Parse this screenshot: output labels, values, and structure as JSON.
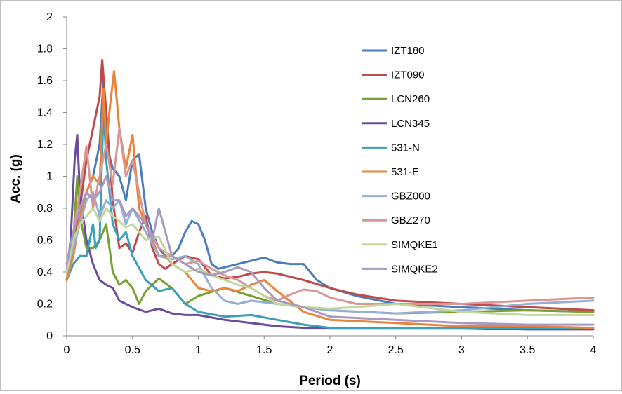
{
  "chart_data": {
    "type": "line",
    "xlabel": "Period (s)",
    "ylabel": "Acc. (g)",
    "xlim": [
      0,
      4
    ],
    "ylim": [
      0,
      2
    ],
    "xticks": [
      "0",
      "0.5",
      "1",
      "1.5",
      "2",
      "2.5",
      "3",
      "3.5",
      "4"
    ],
    "yticks": [
      "0",
      "0.2",
      "0.4",
      "0.6",
      "0.8",
      "1",
      "1.2",
      "1.4",
      "1.6",
      "1.8",
      "2"
    ],
    "grid": false,
    "legend_position": "top-right",
    "series": [
      {
        "name": "IZT180",
        "color": "#4a7ebb",
        "x": [
          0,
          0.05,
          0.1,
          0.15,
          0.2,
          0.25,
          0.28,
          0.3,
          0.35,
          0.4,
          0.45,
          0.5,
          0.55,
          0.6,
          0.65,
          0.7,
          0.75,
          0.8,
          0.85,
          0.9,
          0.95,
          1.0,
          1.05,
          1.1,
          1.15,
          1.2,
          1.3,
          1.4,
          1.5,
          1.6,
          1.7,
          1.8,
          1.9,
          2.0,
          2.2,
          2.5,
          3.0,
          3.5,
          4.0
        ],
        "y": [
          0.35,
          0.5,
          0.75,
          0.9,
          1.0,
          1.2,
          1.62,
          1.2,
          1.05,
          1.0,
          0.85,
          1.1,
          1.14,
          0.8,
          0.65,
          0.55,
          0.5,
          0.5,
          0.55,
          0.65,
          0.72,
          0.7,
          0.6,
          0.45,
          0.42,
          0.43,
          0.45,
          0.47,
          0.49,
          0.46,
          0.45,
          0.45,
          0.35,
          0.3,
          0.25,
          0.2,
          0.18,
          0.16,
          0.15
        ]
      },
      {
        "name": "IZT090",
        "color": "#be4b48",
        "x": [
          0,
          0.05,
          0.1,
          0.15,
          0.2,
          0.25,
          0.27,
          0.3,
          0.35,
          0.4,
          0.45,
          0.5,
          0.55,
          0.6,
          0.65,
          0.7,
          0.75,
          0.8,
          0.9,
          1.0,
          1.1,
          1.2,
          1.3,
          1.4,
          1.5,
          1.6,
          1.7,
          1.8,
          2.0,
          2.2,
          2.5,
          3.0,
          3.5,
          4.0
        ],
        "y": [
          0.35,
          0.55,
          0.8,
          1.1,
          1.3,
          1.5,
          1.73,
          1.4,
          0.85,
          0.55,
          0.58,
          0.52,
          0.65,
          0.75,
          0.55,
          0.45,
          0.42,
          0.45,
          0.5,
          0.48,
          0.38,
          0.36,
          0.37,
          0.39,
          0.4,
          0.39,
          0.37,
          0.35,
          0.3,
          0.26,
          0.22,
          0.2,
          0.18,
          0.16
        ]
      },
      {
        "name": "LCN260",
        "color": "#77a033",
        "x": [
          0,
          0.05,
          0.08,
          0.1,
          0.15,
          0.2,
          0.25,
          0.3,
          0.35,
          0.4,
          0.45,
          0.5,
          0.55,
          0.6,
          0.7,
          0.8,
          0.9,
          1.0,
          1.2,
          1.4,
          1.6,
          1.8,
          2.0,
          2.5,
          3.0,
          3.5,
          4.0
        ],
        "y": [
          0.35,
          0.6,
          1.0,
          0.75,
          0.55,
          0.55,
          0.6,
          0.7,
          0.4,
          0.32,
          0.35,
          0.3,
          0.2,
          0.28,
          0.36,
          0.3,
          0.2,
          0.25,
          0.3,
          0.25,
          0.2,
          0.18,
          0.16,
          0.14,
          0.15,
          0.16,
          0.15
        ]
      },
      {
        "name": "LCN345",
        "color": "#6b4c9a",
        "x": [
          0,
          0.03,
          0.06,
          0.08,
          0.1,
          0.15,
          0.2,
          0.25,
          0.3,
          0.35,
          0.4,
          0.5,
          0.6,
          0.7,
          0.8,
          0.9,
          1.0,
          1.2,
          1.4,
          1.6,
          1.8,
          2.0,
          2.5,
          3.0,
          3.5,
          4.0
        ],
        "y": [
          0.4,
          0.6,
          1.1,
          1.26,
          0.9,
          0.6,
          0.45,
          0.35,
          0.32,
          0.3,
          0.22,
          0.18,
          0.15,
          0.17,
          0.14,
          0.13,
          0.13,
          0.1,
          0.08,
          0.06,
          0.05,
          0.05,
          0.05,
          0.05,
          0.04,
          0.04
        ]
      },
      {
        "name": "531-N",
        "color": "#3a9fb8",
        "x": [
          0,
          0.05,
          0.1,
          0.15,
          0.2,
          0.22,
          0.25,
          0.28,
          0.3,
          0.35,
          0.4,
          0.45,
          0.5,
          0.6,
          0.7,
          0.8,
          0.9,
          1.0,
          1.2,
          1.4,
          1.6,
          1.8,
          2.0,
          2.5,
          3.0,
          3.5,
          4.0
        ],
        "y": [
          0.35,
          0.45,
          0.5,
          0.5,
          0.7,
          0.55,
          0.6,
          1.44,
          1.1,
          0.7,
          0.6,
          0.65,
          0.5,
          0.35,
          0.28,
          0.3,
          0.2,
          0.15,
          0.12,
          0.13,
          0.1,
          0.07,
          0.05,
          0.05,
          0.05,
          0.05,
          0.05
        ]
      },
      {
        "name": "531-E",
        "color": "#e8843b",
        "x": [
          0,
          0.05,
          0.1,
          0.15,
          0.2,
          0.25,
          0.28,
          0.3,
          0.33,
          0.36,
          0.4,
          0.45,
          0.5,
          0.55,
          0.6,
          0.65,
          0.7,
          0.75,
          0.8,
          0.9,
          1.0,
          1.1,
          1.2,
          1.3,
          1.4,
          1.5,
          1.6,
          1.8,
          2.0,
          2.5,
          3.0,
          3.5,
          4.0
        ],
        "y": [
          0.35,
          0.5,
          0.75,
          0.9,
          1.0,
          0.95,
          1.55,
          1.2,
          1.45,
          1.66,
          1.3,
          1.05,
          1.26,
          0.8,
          0.7,
          0.6,
          0.5,
          0.5,
          0.45,
          0.4,
          0.3,
          0.28,
          0.3,
          0.28,
          0.32,
          0.35,
          0.28,
          0.15,
          0.1,
          0.08,
          0.06,
          0.06,
          0.05
        ]
      },
      {
        "name": "GBZ000",
        "color": "#94aed6",
        "x": [
          0,
          0.05,
          0.1,
          0.15,
          0.2,
          0.25,
          0.3,
          0.35,
          0.4,
          0.45,
          0.5,
          0.6,
          0.7,
          0.8,
          0.9,
          1.0,
          1.1,
          1.2,
          1.3,
          1.4,
          1.6,
          1.8,
          2.0,
          2.5,
          3.0,
          3.5,
          4.0
        ],
        "y": [
          0.4,
          0.55,
          0.7,
          0.85,
          0.9,
          0.75,
          0.85,
          0.8,
          0.85,
          0.7,
          0.8,
          0.65,
          0.5,
          0.48,
          0.5,
          0.45,
          0.3,
          0.22,
          0.2,
          0.22,
          0.2,
          0.18,
          0.16,
          0.14,
          0.16,
          0.2,
          0.22
        ]
      },
      {
        "name": "GBZ270",
        "color": "#d99694",
        "x": [
          0,
          0.05,
          0.1,
          0.15,
          0.2,
          0.25,
          0.3,
          0.35,
          0.4,
          0.45,
          0.5,
          0.6,
          0.7,
          0.8,
          0.9,
          1.0,
          1.1,
          1.2,
          1.3,
          1.4,
          1.5,
          1.6,
          1.7,
          1.8,
          1.9,
          2.0,
          2.2,
          2.5,
          3.0,
          3.5,
          4.0
        ],
        "y": [
          0.45,
          0.65,
          0.9,
          1.19,
          0.8,
          1.0,
          1.2,
          0.95,
          1.3,
          1.0,
          1.1,
          0.7,
          0.55,
          0.5,
          0.45,
          0.47,
          0.42,
          0.38,
          0.35,
          0.3,
          0.25,
          0.22,
          0.26,
          0.29,
          0.28,
          0.24,
          0.2,
          0.2,
          0.2,
          0.22,
          0.24
        ]
      },
      {
        "name": "SIMQKE1",
        "color": "#c3d69b",
        "x": [
          0,
          0.05,
          0.1,
          0.15,
          0.2,
          0.25,
          0.3,
          0.35,
          0.4,
          0.45,
          0.5,
          0.55,
          0.6,
          0.7,
          0.8,
          0.9,
          1.0,
          1.1,
          1.2,
          1.3,
          1.4,
          1.5,
          1.6,
          1.8,
          2.0,
          2.2,
          2.5,
          3.0,
          3.5,
          4.0
        ],
        "y": [
          0.4,
          0.6,
          0.7,
          0.75,
          0.8,
          0.72,
          0.8,
          0.75,
          0.72,
          0.68,
          0.7,
          0.65,
          0.6,
          0.62,
          0.45,
          0.4,
          0.42,
          0.38,
          0.35,
          0.32,
          0.3,
          0.25,
          0.2,
          0.18,
          0.17,
          0.18,
          0.2,
          0.15,
          0.13,
          0.13
        ]
      },
      {
        "name": "SIMQKE2",
        "color": "#a699c2",
        "x": [
          0,
          0.05,
          0.1,
          0.15,
          0.2,
          0.25,
          0.3,
          0.35,
          0.4,
          0.45,
          0.5,
          0.6,
          0.65,
          0.7,
          0.75,
          0.8,
          0.9,
          1.0,
          1.1,
          1.2,
          1.3,
          1.4,
          1.5,
          1.6,
          1.8,
          2.0,
          2.5,
          3.0,
          3.5,
          4.0
        ],
        "y": [
          0.45,
          0.65,
          0.8,
          0.9,
          0.85,
          0.9,
          1.0,
          0.85,
          0.85,
          0.75,
          0.8,
          0.7,
          0.6,
          0.8,
          0.65,
          0.5,
          0.45,
          0.4,
          0.38,
          0.4,
          0.43,
          0.4,
          0.3,
          0.22,
          0.18,
          0.12,
          0.1,
          0.08,
          0.07,
          0.07
        ]
      }
    ]
  }
}
